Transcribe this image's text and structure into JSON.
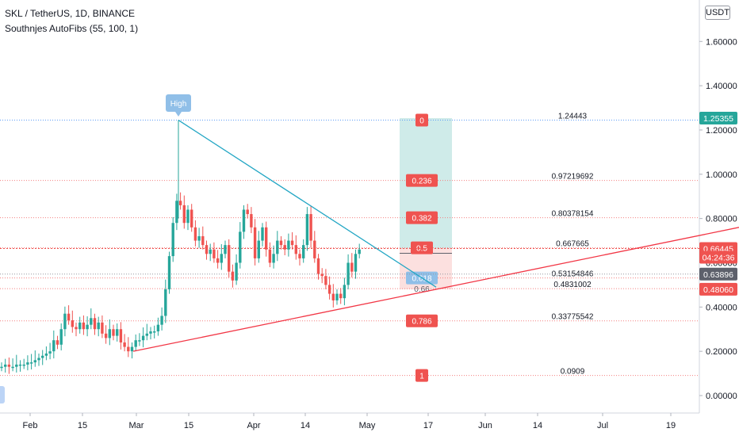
{
  "header": {
    "symbol_line": "SKL / TetherUS, 1D, BINANCE",
    "indicator_line": "Southnjes AutoFibs (55, 100, 1)",
    "currency_button": "USDT"
  },
  "chart_data": {
    "type": "candlestick",
    "title": "SKL / TetherUS, 1D, BINANCE",
    "ylim": [
      -0.05,
      1.85
    ],
    "y_ticks": [
      "0.00000",
      "0.20000",
      "0.40000",
      "0.60000",
      "0.80000",
      "1.00000",
      "1.20000",
      "1.40000",
      "1.60000"
    ],
    "x_tick_labels": [
      "Feb",
      "15",
      "Mar",
      "15",
      "Apr",
      "14",
      "May",
      "17",
      "Jun",
      "14",
      "Jul",
      "19"
    ],
    "high_label": "High",
    "fib_levels": [
      {
        "ratio": "0",
        "value": "1.24443",
        "price": 1.24443
      },
      {
        "ratio": "0.236",
        "value": "0.97219692",
        "price": 0.97219692
      },
      {
        "ratio": "0.382",
        "value": "0.80378154",
        "price": 0.80378154
      },
      {
        "ratio": "0.5",
        "value": "0.667665",
        "price": 0.667665
      },
      {
        "ratio": "0.618",
        "value": "0.53154846",
        "price": 0.53154846
      },
      {
        "ratio": "0.66",
        "value": "0.4831002",
        "price": 0.4831002
      },
      {
        "ratio": "0.786",
        "value": "0.33775542",
        "price": 0.33775542
      },
      {
        "ratio": "1",
        "value": "0.0909",
        "price": 0.0909
      }
    ],
    "price_labels": [
      {
        "text": "1.25355",
        "price": 1.25355,
        "color": "#26a69a"
      },
      {
        "text": "0.66445",
        "price": 0.66445,
        "color": "#ef5350"
      },
      {
        "text": "04:24:36",
        "price": 0.625,
        "color": "#ef5350"
      },
      {
        "text": "0.63896",
        "price": 0.5487,
        "color": "#5d606b"
      },
      {
        "text": "0.48060",
        "price": 0.4806,
        "color": "#ef5350"
      }
    ],
    "position_tool": {
      "target": 1.25355,
      "entry": 0.66445,
      "stop": 0.4806
    },
    "colors": {
      "up": "#26a69a",
      "down": "#ef5350",
      "trend_up": "#f23645",
      "trend_down": "#22a6c4"
    }
  }
}
